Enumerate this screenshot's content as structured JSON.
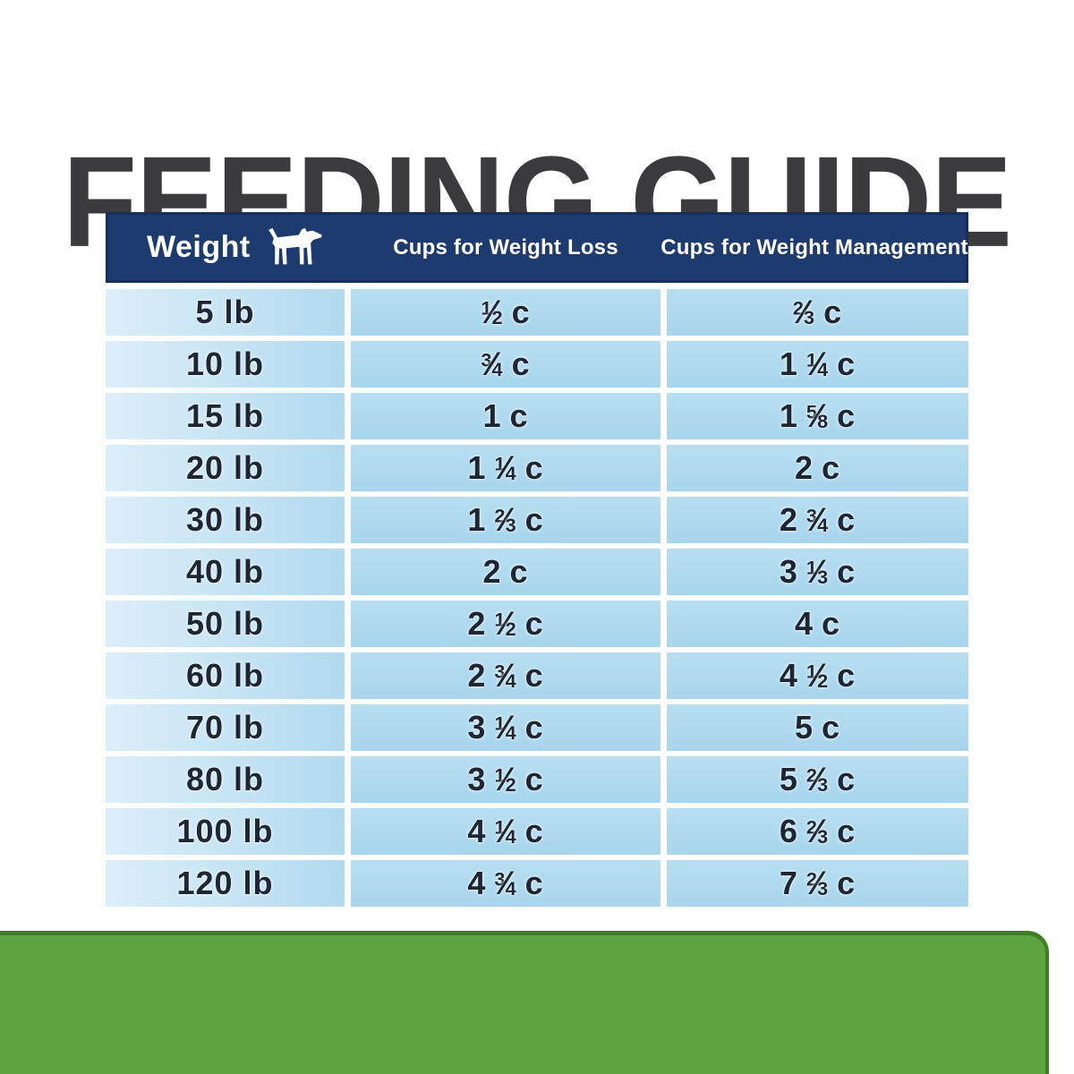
{
  "title": "FEEDING GUIDE",
  "colors": {
    "header_navy": "#1d3b6e",
    "header_border": "#16305b",
    "row_blue": "#a9d6ec",
    "row_blue_light": "#dceef9",
    "cell_text": "#1d2634",
    "title_gray": "#3b3b3d",
    "green_bar": "#5ba43e",
    "green_bar_edge": "#407c22"
  },
  "table": {
    "columns": [
      "Weight",
      "Cups for Weight Loss",
      "Cups for Weight Management"
    ],
    "header_icon": "dog-icon",
    "unit_label": "c",
    "rows": [
      {
        "weight": "5 lb",
        "loss": {
          "num": "1",
          "den": "2"
        },
        "management": {
          "num": "2",
          "den": "3"
        }
      },
      {
        "weight": "10 lb",
        "loss": {
          "num": "3",
          "den": "4"
        },
        "management": {
          "whole": "1",
          "num": "1",
          "den": "4"
        }
      },
      {
        "weight": "15 lb",
        "loss": {
          "whole": "1"
        },
        "management": {
          "whole": "1",
          "num": "5",
          "den": "8"
        }
      },
      {
        "weight": "20 lb",
        "loss": {
          "whole": "1",
          "num": "1",
          "den": "4"
        },
        "management": {
          "whole": "2"
        }
      },
      {
        "weight": "30 lb",
        "loss": {
          "whole": "1",
          "num": "2",
          "den": "3"
        },
        "management": {
          "whole": "2",
          "num": "3",
          "den": "4"
        }
      },
      {
        "weight": "40 lb",
        "loss": {
          "whole": "2"
        },
        "management": {
          "whole": "3",
          "num": "1",
          "den": "3"
        }
      },
      {
        "weight": "50 lb",
        "loss": {
          "whole": "2",
          "num": "1",
          "den": "2"
        },
        "management": {
          "whole": "4"
        }
      },
      {
        "weight": "60 lb",
        "loss": {
          "whole": "2",
          "num": "3",
          "den": "4"
        },
        "management": {
          "whole": "4",
          "num": "1",
          "den": "2"
        }
      },
      {
        "weight": "70 lb",
        "loss": {
          "whole": "3",
          "num": "1",
          "den": "4"
        },
        "management": {
          "whole": "5"
        }
      },
      {
        "weight": "80 lb",
        "loss": {
          "whole": "3",
          "num": "1",
          "den": "2"
        },
        "management": {
          "whole": "5",
          "num": "2",
          "den": "3"
        }
      },
      {
        "weight": "100 lb",
        "loss": {
          "whole": "4",
          "num": "1",
          "den": "4"
        },
        "management": {
          "whole": "6",
          "num": "2",
          "den": "3"
        }
      },
      {
        "weight": "120 lb",
        "loss": {
          "whole": "4",
          "num": "3",
          "den": "4"
        },
        "management": {
          "whole": "7",
          "num": "2",
          "den": "3"
        }
      }
    ]
  },
  "chart_data": {
    "type": "table",
    "title": "FEEDING GUIDE",
    "columns": [
      "Weight",
      "Cups for Weight Loss",
      "Cups for Weight Management"
    ],
    "rows": [
      [
        "5 lb",
        "1/2 c",
        "2/3 c"
      ],
      [
        "10 lb",
        "3/4 c",
        "1 1/4 c"
      ],
      [
        "15 lb",
        "1 c",
        "1 5/8 c"
      ],
      [
        "20 lb",
        "1 1/4 c",
        "2 c"
      ],
      [
        "30 lb",
        "1 2/3 c",
        "2 3/4 c"
      ],
      [
        "40 lb",
        "2 c",
        "3 1/3 c"
      ],
      [
        "50 lb",
        "2 1/2 c",
        "4 c"
      ],
      [
        "60 lb",
        "2 3/4 c",
        "4 1/2 c"
      ],
      [
        "70 lb",
        "3 1/4 c",
        "5 c"
      ],
      [
        "80 lb",
        "3 1/2 c",
        "5 2/3 c"
      ],
      [
        "100 lb",
        "4 1/4 c",
        "6 2/3 c"
      ],
      [
        "120 lb",
        "4 3/4 c",
        "7 2/3 c"
      ]
    ]
  }
}
